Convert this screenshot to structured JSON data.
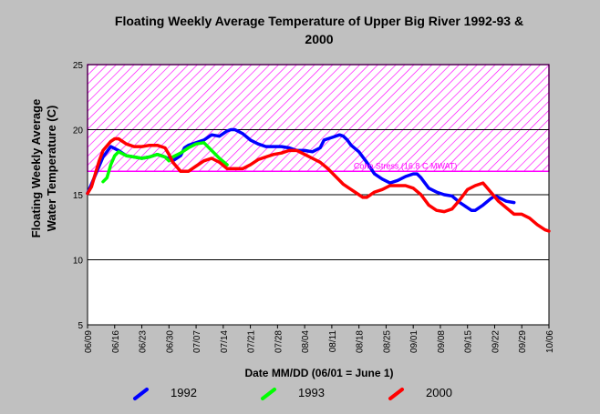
{
  "chart_data": {
    "type": "line",
    "title_line1": "Floating Weekly Average Temperature of Upper Big River 1992-93 &",
    "title_line2": "2000",
    "ylabel_line1": "Floating Weekly Average",
    "ylabel_line2": "Water Temperature (C)",
    "xlabel": "Date MM/DD (06/01 = June 1)",
    "ylim": [
      5,
      25
    ],
    "yticks": [
      5,
      10,
      15,
      20,
      25
    ],
    "xlim": [
      0,
      119
    ],
    "x_ticks": [
      {
        "x": 0,
        "label": "06/09"
      },
      {
        "x": 7,
        "label": "06/16"
      },
      {
        "x": 14,
        "label": "06/23"
      },
      {
        "x": 21,
        "label": "06/30"
      },
      {
        "x": 28,
        "label": "07/07"
      },
      {
        "x": 35,
        "label": "07/14"
      },
      {
        "x": 42,
        "label": "07/21"
      },
      {
        "x": 49,
        "label": "07/28"
      },
      {
        "x": 56,
        "label": "08/04"
      },
      {
        "x": 63,
        "label": "08/11"
      },
      {
        "x": 70,
        "label": "08/18"
      },
      {
        "x": 77,
        "label": "08/25"
      },
      {
        "x": 84,
        "label": "09/01"
      },
      {
        "x": 91,
        "label": "09/08"
      },
      {
        "x": 98,
        "label": "09/15"
      },
      {
        "x": 105,
        "label": "09/22"
      },
      {
        "x": 112,
        "label": "09/29"
      },
      {
        "x": 119,
        "label": "10/06"
      }
    ],
    "x_tick_unit_days": 7,
    "grid": "horizontal",
    "stress_band": {
      "low": 16.8,
      "high": 25,
      "label": "Coho Stress (16.8 C MWAT)",
      "color": "#ff00ff"
    },
    "series": [
      {
        "name": "1992",
        "color": "#0000ff",
        "points": [
          [
            0,
            15.1
          ],
          [
            2,
            16.5
          ],
          [
            4,
            17.9
          ],
          [
            6,
            18.7
          ],
          [
            8,
            18.4
          ],
          [
            10,
            18.0
          ],
          [
            12,
            17.9
          ],
          [
            14,
            17.8
          ],
          [
            16,
            17.9
          ],
          [
            18,
            18.1
          ],
          [
            20,
            17.9
          ],
          [
            22,
            17.6
          ],
          [
            24,
            18.0
          ],
          [
            25,
            18.6
          ],
          [
            26,
            18.8
          ],
          [
            28,
            19.0
          ],
          [
            30,
            19.2
          ],
          [
            32,
            19.6
          ],
          [
            34,
            19.5
          ],
          [
            36,
            19.9
          ],
          [
            37,
            20.0
          ],
          [
            38,
            20.0
          ],
          [
            40,
            19.7
          ],
          [
            42,
            19.2
          ],
          [
            44,
            18.9
          ],
          [
            46,
            18.7
          ],
          [
            48,
            18.7
          ],
          [
            50,
            18.7
          ],
          [
            52,
            18.6
          ],
          [
            54,
            18.4
          ],
          [
            56,
            18.4
          ],
          [
            58,
            18.3
          ],
          [
            60,
            18.6
          ],
          [
            61,
            19.2
          ],
          [
            63,
            19.4
          ],
          [
            65,
            19.6
          ],
          [
            66,
            19.5
          ],
          [
            67,
            19.2
          ],
          [
            68,
            18.8
          ],
          [
            70,
            18.3
          ],
          [
            72,
            17.5
          ],
          [
            74,
            16.6
          ],
          [
            76,
            16.2
          ],
          [
            78,
            15.9
          ],
          [
            80,
            16.1
          ],
          [
            82,
            16.4
          ],
          [
            84,
            16.6
          ],
          [
            85,
            16.6
          ],
          [
            86,
            16.3
          ],
          [
            88,
            15.5
          ],
          [
            90,
            15.2
          ],
          [
            92,
            15.0
          ],
          [
            94,
            14.9
          ],
          [
            96,
            14.4
          ],
          [
            98,
            14.0
          ],
          [
            99,
            13.8
          ],
          [
            100,
            13.8
          ],
          [
            102,
            14.2
          ],
          [
            104,
            14.7
          ],
          [
            105,
            14.9
          ],
          [
            106,
            14.8
          ],
          [
            108,
            14.5
          ],
          [
            110,
            14.4
          ]
        ]
      },
      {
        "name": "1993",
        "color": "#00ff00",
        "points": [
          [
            4,
            16.0
          ],
          [
            5,
            16.3
          ],
          [
            6,
            17.3
          ],
          [
            7,
            18.0
          ],
          [
            8,
            18.3
          ],
          [
            10,
            18.0
          ],
          [
            12,
            17.9
          ],
          [
            14,
            17.8
          ],
          [
            16,
            17.9
          ],
          [
            18,
            18.1
          ],
          [
            20,
            17.9
          ],
          [
            21,
            17.6
          ],
          [
            22,
            17.9
          ],
          [
            24,
            18.2
          ],
          [
            26,
            18.6
          ],
          [
            28,
            18.9
          ],
          [
            30,
            19.0
          ],
          [
            32,
            18.4
          ],
          [
            34,
            17.8
          ],
          [
            36,
            17.3
          ]
        ]
      },
      {
        "name": "2000",
        "color": "#ff0000",
        "points": [
          [
            0,
            15.1
          ],
          [
            1,
            15.6
          ],
          [
            2,
            16.6
          ],
          [
            3,
            17.6
          ],
          [
            4,
            18.4
          ],
          [
            6,
            19.1
          ],
          [
            7,
            19.3
          ],
          [
            8,
            19.3
          ],
          [
            10,
            18.9
          ],
          [
            12,
            18.7
          ],
          [
            14,
            18.7
          ],
          [
            16,
            18.8
          ],
          [
            18,
            18.8
          ],
          [
            20,
            18.6
          ],
          [
            21,
            18.1
          ],
          [
            22,
            17.5
          ],
          [
            24,
            16.8
          ],
          [
            26,
            16.8
          ],
          [
            28,
            17.2
          ],
          [
            30,
            17.6
          ],
          [
            32,
            17.8
          ],
          [
            34,
            17.5
          ],
          [
            36,
            17.0
          ],
          [
            38,
            17.0
          ],
          [
            40,
            17.0
          ],
          [
            42,
            17.3
          ],
          [
            44,
            17.7
          ],
          [
            46,
            17.9
          ],
          [
            48,
            18.1
          ],
          [
            50,
            18.2
          ],
          [
            52,
            18.4
          ],
          [
            54,
            18.4
          ],
          [
            56,
            18.1
          ],
          [
            58,
            17.8
          ],
          [
            60,
            17.5
          ],
          [
            62,
            17.0
          ],
          [
            64,
            16.4
          ],
          [
            66,
            15.8
          ],
          [
            68,
            15.4
          ],
          [
            70,
            15.0
          ],
          [
            71,
            14.8
          ],
          [
            72,
            14.8
          ],
          [
            74,
            15.2
          ],
          [
            76,
            15.4
          ],
          [
            78,
            15.7
          ],
          [
            80,
            15.7
          ],
          [
            82,
            15.7
          ],
          [
            84,
            15.5
          ],
          [
            86,
            15.0
          ],
          [
            88,
            14.2
          ],
          [
            90,
            13.8
          ],
          [
            92,
            13.7
          ],
          [
            94,
            13.9
          ],
          [
            96,
            14.6
          ],
          [
            98,
            15.4
          ],
          [
            100,
            15.7
          ],
          [
            102,
            15.9
          ],
          [
            104,
            15.2
          ],
          [
            106,
            14.5
          ],
          [
            108,
            14.0
          ],
          [
            110,
            13.5
          ],
          [
            112,
            13.5
          ],
          [
            114,
            13.2
          ],
          [
            116,
            12.7
          ],
          [
            118,
            12.3
          ],
          [
            119,
            12.2
          ]
        ]
      }
    ]
  }
}
